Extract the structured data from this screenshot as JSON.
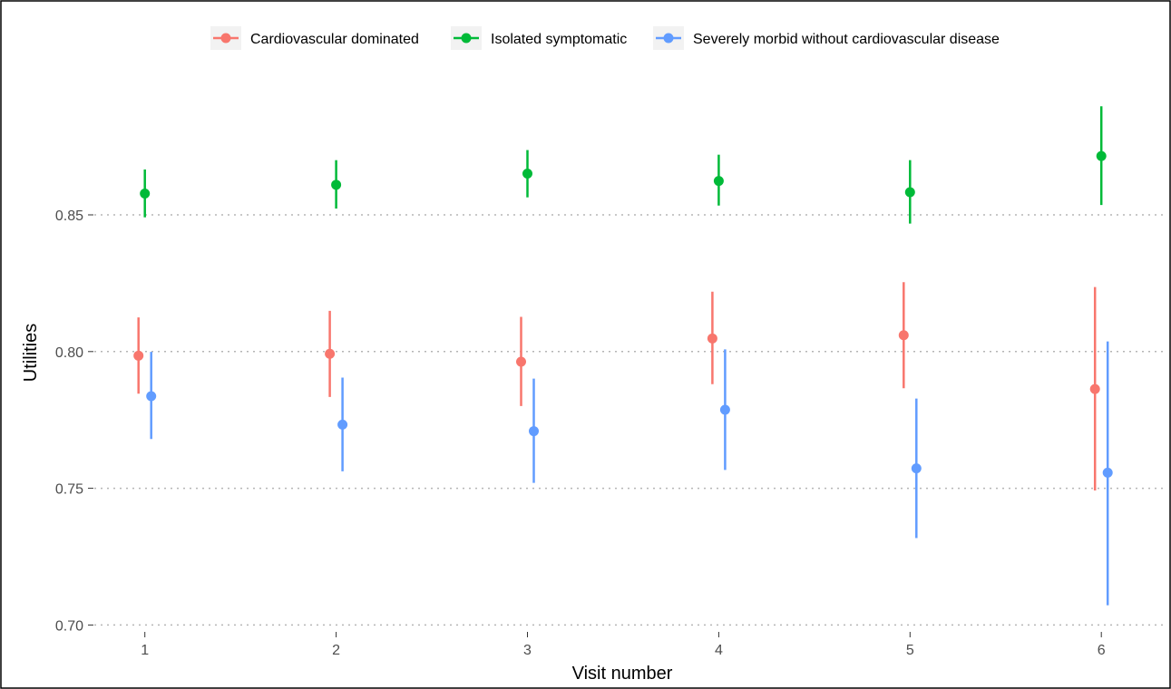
{
  "chart_data": {
    "type": "scatter",
    "subtype": "point-range",
    "title": "",
    "xlabel": "Visit number",
    "ylabel": "Utilities",
    "x_categories": [
      "1",
      "2",
      "3",
      "4",
      "5",
      "6"
    ],
    "y_ticks": [
      "0.70",
      "0.75",
      "0.80",
      "0.85"
    ],
    "ylim": [
      0.697,
      0.9
    ],
    "grid": "horizontal-dotted",
    "legend_position": "top",
    "series": [
      {
        "name": "Cardiovascular dominated",
        "color": "#F8766D",
        "values": [
          0.7985,
          0.7992,
          0.7963,
          0.8048,
          0.806,
          0.7863
        ],
        "lower": [
          0.7846,
          0.7834,
          0.7801,
          0.7881,
          0.7866,
          0.7492
        ],
        "upper": [
          0.8125,
          0.8149,
          0.8127,
          0.8219,
          0.8254,
          0.8236
        ]
      },
      {
        "name": "Isolated symptomatic",
        "color": "#00BA38",
        "values": [
          0.8578,
          0.861,
          0.8651,
          0.8624,
          0.8583,
          0.8715
        ],
        "lower": [
          0.8491,
          0.8523,
          0.8564,
          0.8534,
          0.8468,
          0.8536
        ],
        "upper": [
          0.8666,
          0.87,
          0.8737,
          0.872,
          0.87,
          0.8897
        ]
      },
      {
        "name": "Severely morbid without cardiovascular disease",
        "color": "#619CFF",
        "values": [
          0.7837,
          0.7733,
          0.7709,
          0.7787,
          0.7573,
          0.7557
        ],
        "lower": [
          0.768,
          0.7562,
          0.752,
          0.7567,
          0.7318,
          0.7072
        ],
        "upper": [
          0.7999,
          0.7905,
          0.7901,
          0.8008,
          0.7828,
          0.8037
        ]
      }
    ]
  }
}
